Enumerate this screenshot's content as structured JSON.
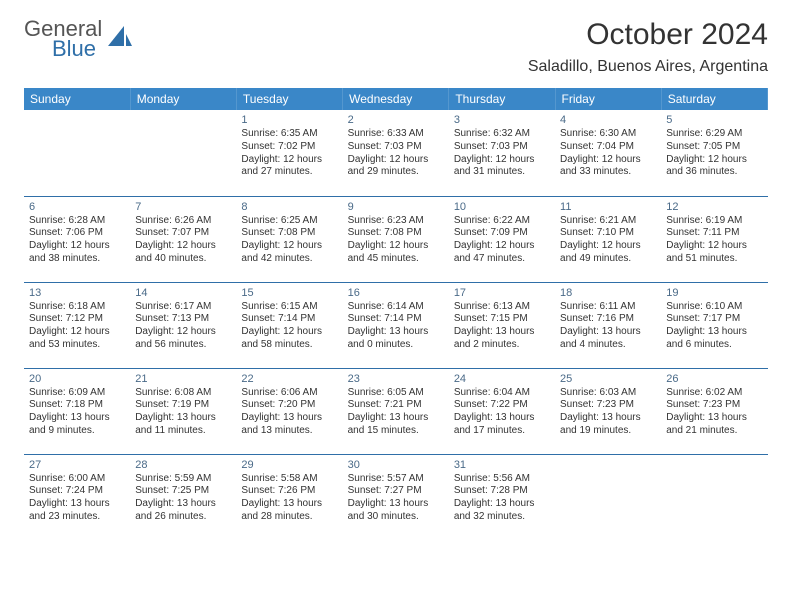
{
  "logo": {
    "top": "General",
    "bottom": "Blue"
  },
  "title": "October 2024",
  "location": "Saladillo, Buenos Aires, Argentina",
  "colors": {
    "header_bg": "#3a87c8",
    "header_fg": "#ffffff",
    "border": "#2f6fa8",
    "daynum": "#4a6a88",
    "text": "#333333",
    "background": "#ffffff",
    "logo_accent": "#2f6fa8"
  },
  "day_names": [
    "Sunday",
    "Monday",
    "Tuesday",
    "Wednesday",
    "Thursday",
    "Friday",
    "Saturday"
  ],
  "weeks": [
    [
      null,
      null,
      {
        "n": "1",
        "sr": "6:35 AM",
        "ss": "7:02 PM",
        "dl": "12 hours and 27 minutes."
      },
      {
        "n": "2",
        "sr": "6:33 AM",
        "ss": "7:03 PM",
        "dl": "12 hours and 29 minutes."
      },
      {
        "n": "3",
        "sr": "6:32 AM",
        "ss": "7:03 PM",
        "dl": "12 hours and 31 minutes."
      },
      {
        "n": "4",
        "sr": "6:30 AM",
        "ss": "7:04 PM",
        "dl": "12 hours and 33 minutes."
      },
      {
        "n": "5",
        "sr": "6:29 AM",
        "ss": "7:05 PM",
        "dl": "12 hours and 36 minutes."
      }
    ],
    [
      {
        "n": "6",
        "sr": "6:28 AM",
        "ss": "7:06 PM",
        "dl": "12 hours and 38 minutes."
      },
      {
        "n": "7",
        "sr": "6:26 AM",
        "ss": "7:07 PM",
        "dl": "12 hours and 40 minutes."
      },
      {
        "n": "8",
        "sr": "6:25 AM",
        "ss": "7:08 PM",
        "dl": "12 hours and 42 minutes."
      },
      {
        "n": "9",
        "sr": "6:23 AM",
        "ss": "7:08 PM",
        "dl": "12 hours and 45 minutes."
      },
      {
        "n": "10",
        "sr": "6:22 AM",
        "ss": "7:09 PM",
        "dl": "12 hours and 47 minutes."
      },
      {
        "n": "11",
        "sr": "6:21 AM",
        "ss": "7:10 PM",
        "dl": "12 hours and 49 minutes."
      },
      {
        "n": "12",
        "sr": "6:19 AM",
        "ss": "7:11 PM",
        "dl": "12 hours and 51 minutes."
      }
    ],
    [
      {
        "n": "13",
        "sr": "6:18 AM",
        "ss": "7:12 PM",
        "dl": "12 hours and 53 minutes."
      },
      {
        "n": "14",
        "sr": "6:17 AM",
        "ss": "7:13 PM",
        "dl": "12 hours and 56 minutes."
      },
      {
        "n": "15",
        "sr": "6:15 AM",
        "ss": "7:14 PM",
        "dl": "12 hours and 58 minutes."
      },
      {
        "n": "16",
        "sr": "6:14 AM",
        "ss": "7:14 PM",
        "dl": "13 hours and 0 minutes."
      },
      {
        "n": "17",
        "sr": "6:13 AM",
        "ss": "7:15 PM",
        "dl": "13 hours and 2 minutes."
      },
      {
        "n": "18",
        "sr": "6:11 AM",
        "ss": "7:16 PM",
        "dl": "13 hours and 4 minutes."
      },
      {
        "n": "19",
        "sr": "6:10 AM",
        "ss": "7:17 PM",
        "dl": "13 hours and 6 minutes."
      }
    ],
    [
      {
        "n": "20",
        "sr": "6:09 AM",
        "ss": "7:18 PM",
        "dl": "13 hours and 9 minutes."
      },
      {
        "n": "21",
        "sr": "6:08 AM",
        "ss": "7:19 PM",
        "dl": "13 hours and 11 minutes."
      },
      {
        "n": "22",
        "sr": "6:06 AM",
        "ss": "7:20 PM",
        "dl": "13 hours and 13 minutes."
      },
      {
        "n": "23",
        "sr": "6:05 AM",
        "ss": "7:21 PM",
        "dl": "13 hours and 15 minutes."
      },
      {
        "n": "24",
        "sr": "6:04 AM",
        "ss": "7:22 PM",
        "dl": "13 hours and 17 minutes."
      },
      {
        "n": "25",
        "sr": "6:03 AM",
        "ss": "7:23 PM",
        "dl": "13 hours and 19 minutes."
      },
      {
        "n": "26",
        "sr": "6:02 AM",
        "ss": "7:23 PM",
        "dl": "13 hours and 21 minutes."
      }
    ],
    [
      {
        "n": "27",
        "sr": "6:00 AM",
        "ss": "7:24 PM",
        "dl": "13 hours and 23 minutes."
      },
      {
        "n": "28",
        "sr": "5:59 AM",
        "ss": "7:25 PM",
        "dl": "13 hours and 26 minutes."
      },
      {
        "n": "29",
        "sr": "5:58 AM",
        "ss": "7:26 PM",
        "dl": "13 hours and 28 minutes."
      },
      {
        "n": "30",
        "sr": "5:57 AM",
        "ss": "7:27 PM",
        "dl": "13 hours and 30 minutes."
      },
      {
        "n": "31",
        "sr": "5:56 AM",
        "ss": "7:28 PM",
        "dl": "13 hours and 32 minutes."
      },
      null,
      null
    ]
  ],
  "labels": {
    "sunrise": "Sunrise: ",
    "sunset": "Sunset: ",
    "daylight": "Daylight: "
  }
}
